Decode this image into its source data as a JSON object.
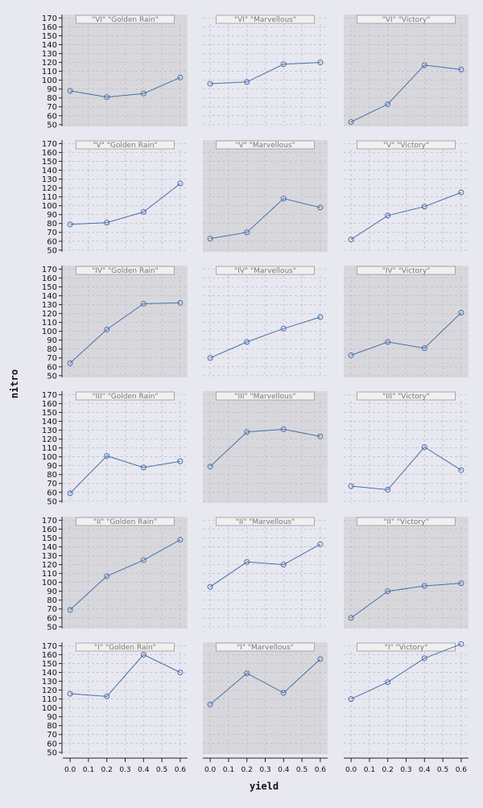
{
  "chart_data": {
    "type": "line",
    "xlabel": "yield",
    "ylabel": "nitro",
    "xlim": [
      -0.04,
      0.64
    ],
    "ylim": [
      48,
      174
    ],
    "x_ticks": [
      "0.0",
      "0.1",
      "0.2",
      "0.3",
      "0.4",
      "0.5",
      "0.6"
    ],
    "y_ticks": [
      "50",
      "60",
      "70",
      "80",
      "90",
      "100",
      "110",
      "120",
      "130",
      "140",
      "150",
      "160",
      "170"
    ],
    "grid": true,
    "marker": "circle",
    "colors": {
      "line": "#4a6fa8",
      "marker_edge": "#4a6fa8",
      "shaded_panel": "#d8d8dc",
      "plain_panel": "#e8e8f0",
      "strip": "#f0f0f0",
      "grid": "#b8b8cc",
      "page": "#e8e8f0"
    },
    "x": [
      0.0,
      0.2,
      0.4,
      0.6
    ],
    "panels": [
      {
        "strip": "\"VI\" \"Golden Rain\"",
        "shaded": true,
        "values": [
          88,
          81,
          85,
          103
        ]
      },
      {
        "strip": "\"VI\" \"Marvellous\"",
        "shaded": false,
        "values": [
          96,
          98,
          118,
          120
        ]
      },
      {
        "strip": "\"VI\" \"Victory\"",
        "shaded": true,
        "values": [
          53,
          73,
          117,
          112
        ]
      },
      {
        "strip": "\"V\" \"Golden Rain\"",
        "shaded": false,
        "values": [
          79,
          81,
          93,
          125
        ]
      },
      {
        "strip": "\"V\" \"Marvellous\"",
        "shaded": true,
        "values": [
          63,
          70,
          108,
          98
        ]
      },
      {
        "strip": "\"V\" \"Victory\"",
        "shaded": false,
        "values": [
          62,
          89,
          99,
          115
        ]
      },
      {
        "strip": "\"IV\" \"Golden Rain\"",
        "shaded": true,
        "values": [
          64,
          102,
          131,
          132
        ]
      },
      {
        "strip": "\"IV\" \"Marvellous\"",
        "shaded": false,
        "values": [
          70,
          88,
          103,
          116
        ]
      },
      {
        "strip": "\"IV\" \"Victory\"",
        "shaded": true,
        "values": [
          73,
          88,
          81,
          121
        ]
      },
      {
        "strip": "\"III\" \"Golden Rain\"",
        "shaded": false,
        "values": [
          59,
          101,
          88,
          95
        ]
      },
      {
        "strip": "\"III\" \"Marvellous\"",
        "shaded": true,
        "values": [
          89,
          128,
          131,
          123
        ]
      },
      {
        "strip": "\"III\" \"Victory\"",
        "shaded": false,
        "values": [
          67,
          63,
          111,
          85
        ]
      },
      {
        "strip": "\"II\" \"Golden Rain\"",
        "shaded": true,
        "values": [
          69,
          107,
          125,
          148
        ]
      },
      {
        "strip": "\"II\" \"Marvellous\"",
        "shaded": false,
        "values": [
          95,
          123,
          120,
          143
        ]
      },
      {
        "strip": "\"II\" \"Victory\"",
        "shaded": true,
        "values": [
          60,
          90,
          96,
          99
        ]
      },
      {
        "strip": "\"I\" \"Golden Rain\"",
        "shaded": false,
        "values": [
          116,
          113,
          160,
          140
        ]
      },
      {
        "strip": "\"I\" \"Marvellous\"",
        "shaded": true,
        "values": [
          104,
          139,
          117,
          155
        ]
      },
      {
        "strip": "\"I\" \"Victory\"",
        "shaded": false,
        "values": [
          110,
          129,
          156,
          172
        ]
      }
    ]
  }
}
